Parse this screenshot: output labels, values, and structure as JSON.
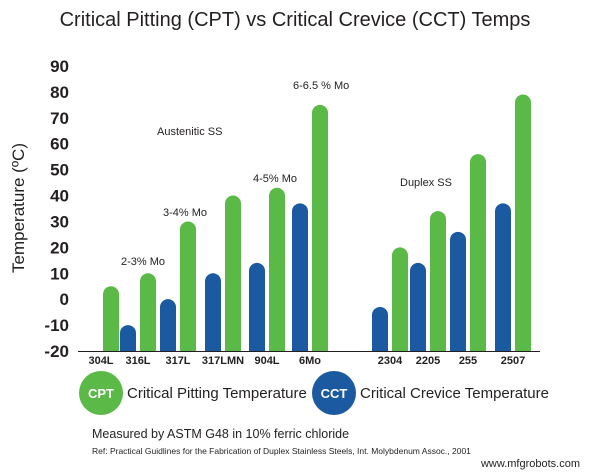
{
  "chart_data": {
    "type": "bar",
    "title": "Critical Pitting (CPT) vs Critical Crevice (CCT) Temps",
    "ylabel": "Temperature (ºC)",
    "xlabel": "",
    "ylim": [
      -20,
      90
    ],
    "yticks": [
      "90",
      "80",
      "70",
      "60",
      "50",
      "40",
      "30",
      "20",
      "10",
      "0",
      "-10",
      "-20"
    ],
    "grid": false,
    "categories": [
      "304L",
      "316L",
      "317L",
      "317LMN",
      "904L",
      "6Mo",
      "2304",
      "2205",
      "255",
      "2507"
    ],
    "series": [
      {
        "name": "Critical Pitting Temperature",
        "short": "CPT",
        "color": "#5ab947",
        "values": [
          5,
          10,
          30,
          40,
          43,
          75,
          20,
          34,
          56,
          79
        ]
      },
      {
        "name": "Critical Crevice Temperature",
        "short": "CCT",
        "color": "#1b5aa0",
        "values": [
          null,
          -10,
          0,
          10,
          14,
          37,
          -3,
          14,
          26,
          37
        ]
      }
    ],
    "annotations": [
      "Austenitic SS",
      "2-3% Mo",
      "3-4% Mo",
      "4-5% Mo",
      "6-6.5 % Mo",
      "Duplex SS"
    ]
  },
  "legend": {
    "cpt_abbr": "CPT",
    "cpt_label": "Critical Pitting Temperature",
    "cct_abbr": "CCT",
    "cct_label": "Critical Crevice Temperature"
  },
  "footnote": "Measured by ASTM G48 in 10% ferric chloride",
  "reference": "Ref: Practical Guidlines for the Fabrication of Duplex Stainless Steels, Int. Molybdenum Assoc., 2001",
  "watermark": "www.mfgrobots.com"
}
